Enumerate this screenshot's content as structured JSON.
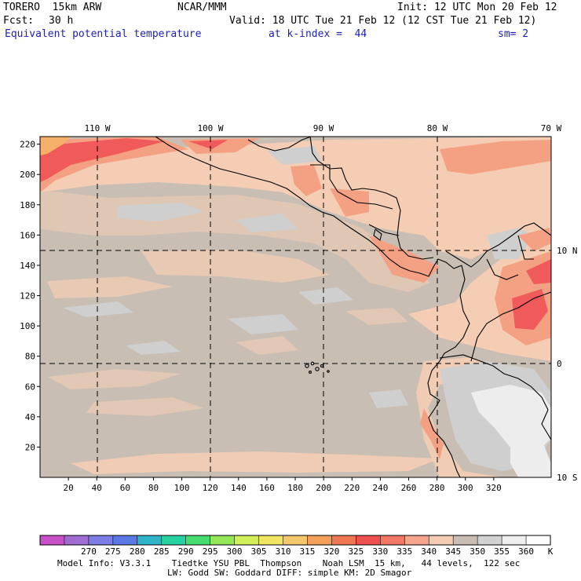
{
  "header": {
    "model": "TORERO  15km ARW",
    "org": "NCAR/MMM",
    "init": "Init: 12 UTC Mon 20 Feb 12",
    "fcst_label": "Fcst:",
    "fcst_value": "30 h",
    "valid": "Valid: 18 UTC Tue 21 Feb 12 (12 CST Tue 21 Feb 12)",
    "field": "Equivalent potential temperature",
    "kindex": "at k-index =  44",
    "smooth": "sm= 2"
  },
  "map": {
    "lon_labels": [
      "110 W",
      "100 W",
      "90 W",
      "80 W",
      "70 W"
    ],
    "lat_labels": [
      "10 N",
      "0",
      "10 S"
    ],
    "x_ticks": [
      "20",
      "40",
      "60",
      "80",
      "100",
      "120",
      "140",
      "160",
      "180",
      "200",
      "220",
      "240",
      "260",
      "280",
      "300",
      "320"
    ],
    "y_ticks": [
      "20",
      "40",
      "60",
      "80",
      "100",
      "120",
      "140",
      "160",
      "180",
      "200",
      "220"
    ],
    "colors": {
      "background": "#c8beb4",
      "peach": "#f4cdb4",
      "gray": "#cfcfcf",
      "salmon": "#f4a082",
      "red": "#f05a5a",
      "orange": "#f5b06a",
      "white": "#ededed"
    }
  },
  "colorbar": {
    "labels": [
      "270",
      "275",
      "280",
      "285",
      "290",
      "295",
      "300",
      "305",
      "310",
      "315",
      "320",
      "325",
      "330",
      "335",
      "340",
      "345",
      "350",
      "355",
      "360"
    ],
    "unit": "K",
    "colors": [
      "#c850c8",
      "#a06ed2",
      "#7d7de6",
      "#5a78e6",
      "#32b4c8",
      "#28d2a0",
      "#46dc6e",
      "#96e65a",
      "#d2f05a",
      "#f0e664",
      "#f5c86e",
      "#f5a05a",
      "#f07850",
      "#f05050",
      "#f07864",
      "#f4a58c",
      "#f4cdb4",
      "#c8beb4",
      "#d2d2d2",
      "#eeeeee",
      "#ffffff"
    ]
  },
  "footer": {
    "line1": "Model Info: V3.3.1    Tiedtke YSU PBL  Thompson    Noah LSM  15 km,   44 levels,  122 sec",
    "line2": "LW: Godd SW: Goddard DIFF: simple KM: 2D Smagor"
  }
}
